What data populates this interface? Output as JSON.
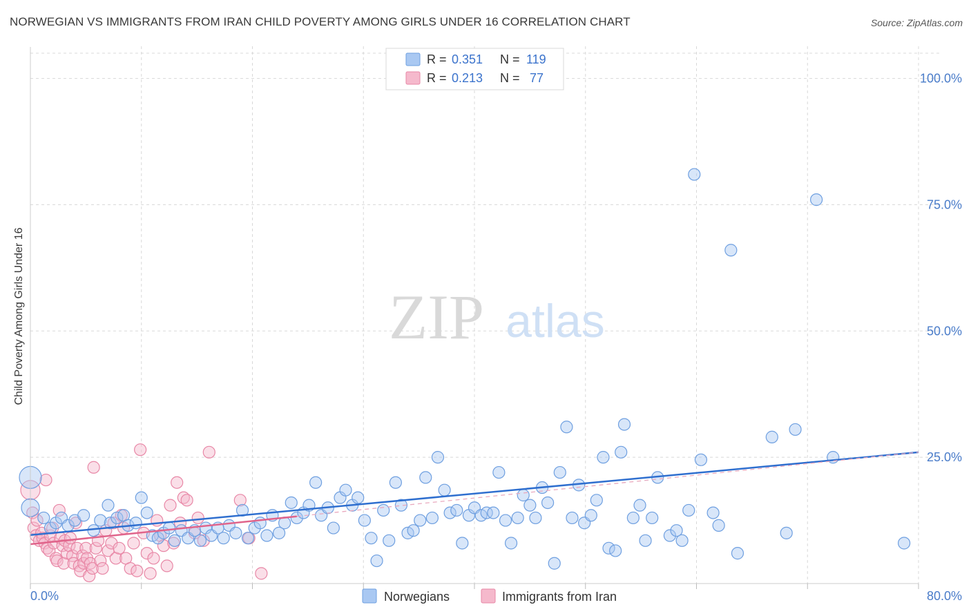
{
  "header": {
    "title": "NORWEGIAN VS IMMIGRANTS FROM IRAN CHILD POVERTY AMONG GIRLS UNDER 16 CORRELATION CHART",
    "source": "Source: ZipAtlas.com"
  },
  "watermark": {
    "zip": "ZIP",
    "atlas": "atlas"
  },
  "colors": {
    "blue_fill": "#a9c8f2",
    "blue_stroke": "#6e9fe0",
    "blue_line": "#2f6fcf",
    "pink_fill": "#f5b9cc",
    "pink_stroke": "#e887a6",
    "pink_line": "#e0648b",
    "tick_text": "#4a7cc9",
    "grid": "#d8d8d8"
  },
  "legend_stats": [
    {
      "r_label": "R = ",
      "r_value": "0.351",
      "n_label": "N = ",
      "n_value": "119",
      "color": "blue"
    },
    {
      "r_label": "R = ",
      "r_value": "0.213",
      "n_label": "N = ",
      "n_value": " 77",
      "color": "pink"
    }
  ],
  "chart_data": {
    "type": "scatter",
    "title": "NORWEGIAN VS IMMIGRANTS FROM IRAN CHILD POVERTY AMONG GIRLS UNDER 16 CORRELATION CHART",
    "xlabel": "",
    "ylabel": "Child Poverty Among Girls Under 16",
    "xlim": [
      0,
      80
    ],
    "ylim": [
      0,
      105
    ],
    "x_tick_labels": [
      "0.0%",
      "80.0%"
    ],
    "y_ticks": [
      25,
      50,
      75,
      100
    ],
    "y_tick_labels": [
      "25.0%",
      "50.0%",
      "75.0%",
      "100.0%"
    ],
    "grid": "dashed horizontal and vertical",
    "legend_position": "bottom-center",
    "series": [
      {
        "name": "Norwegians",
        "color": "blue",
        "trend": {
          "x": [
            0,
            80
          ],
          "y": [
            9.6,
            26.0
          ]
        },
        "points": [
          [
            0.0,
            21.0
          ],
          [
            0.0,
            15.0
          ],
          [
            1.2,
            13.0
          ],
          [
            1.8,
            11.0
          ],
          [
            2.3,
            12.0
          ],
          [
            2.8,
            13.0
          ],
          [
            3.4,
            11.5
          ],
          [
            4.0,
            12.5
          ],
          [
            4.8,
            13.5
          ],
          [
            5.7,
            10.5
          ],
          [
            6.3,
            12.5
          ],
          [
            7.0,
            15.5
          ],
          [
            7.2,
            12.0
          ],
          [
            7.8,
            13.0
          ],
          [
            8.4,
            13.5
          ],
          [
            8.8,
            11.5
          ],
          [
            9.5,
            12.0
          ],
          [
            10.0,
            17.0
          ],
          [
            10.5,
            14.0
          ],
          [
            11.0,
            9.5
          ],
          [
            11.5,
            9.0
          ],
          [
            12.0,
            10.0
          ],
          [
            12.5,
            11.0
          ],
          [
            13.0,
            8.5
          ],
          [
            13.6,
            10.5
          ],
          [
            14.2,
            9.0
          ],
          [
            14.8,
            10.5
          ],
          [
            15.3,
            8.5
          ],
          [
            15.8,
            11.0
          ],
          [
            16.3,
            9.5
          ],
          [
            16.9,
            11.0
          ],
          [
            17.4,
            9.0
          ],
          [
            17.9,
            11.5
          ],
          [
            18.5,
            10.0
          ],
          [
            19.1,
            14.5
          ],
          [
            19.6,
            9.0
          ],
          [
            20.2,
            11.0
          ],
          [
            20.7,
            12.0
          ],
          [
            21.3,
            9.5
          ],
          [
            21.8,
            13.5
          ],
          [
            22.4,
            10.0
          ],
          [
            22.9,
            12.0
          ],
          [
            23.5,
            16.0
          ],
          [
            24.0,
            13.0
          ],
          [
            24.6,
            14.0
          ],
          [
            25.1,
            15.5
          ],
          [
            25.7,
            20.0
          ],
          [
            26.2,
            13.5
          ],
          [
            26.8,
            15.0
          ],
          [
            27.3,
            11.0
          ],
          [
            27.9,
            17.0
          ],
          [
            28.4,
            18.5
          ],
          [
            29.0,
            15.5
          ],
          [
            29.5,
            17.0
          ],
          [
            30.1,
            12.5
          ],
          [
            30.7,
            9.0
          ],
          [
            31.2,
            4.5
          ],
          [
            31.8,
            14.5
          ],
          [
            32.3,
            8.5
          ],
          [
            32.9,
            20.0
          ],
          [
            33.4,
            15.5
          ],
          [
            34.0,
            10.0
          ],
          [
            34.5,
            10.5
          ],
          [
            35.1,
            12.5
          ],
          [
            35.6,
            21.0
          ],
          [
            36.2,
            13.0
          ],
          [
            36.7,
            25.0
          ],
          [
            37.3,
            18.5
          ],
          [
            37.8,
            14.0
          ],
          [
            38.4,
            14.5
          ],
          [
            38.9,
            8.0
          ],
          [
            39.5,
            13.5
          ],
          [
            40.0,
            15.0
          ],
          [
            40.6,
            13.5
          ],
          [
            41.1,
            14.0
          ],
          [
            41.7,
            14.0
          ],
          [
            42.2,
            22.0
          ],
          [
            42.8,
            12.5
          ],
          [
            43.3,
            8.0
          ],
          [
            43.9,
            13.0
          ],
          [
            44.4,
            17.5
          ],
          [
            45.0,
            15.5
          ],
          [
            45.5,
            13.0
          ],
          [
            46.1,
            19.0
          ],
          [
            46.6,
            16.0
          ],
          [
            47.2,
            4.0
          ],
          [
            47.7,
            22.0
          ],
          [
            48.3,
            31.0
          ],
          [
            48.8,
            13.0
          ],
          [
            49.4,
            19.5
          ],
          [
            49.9,
            12.0
          ],
          [
            50.5,
            13.5
          ],
          [
            51.0,
            16.5
          ],
          [
            51.6,
            25.0
          ],
          [
            52.1,
            7.0
          ],
          [
            52.7,
            6.5
          ],
          [
            53.2,
            26.0
          ],
          [
            53.5,
            31.5
          ],
          [
            54.3,
            13.0
          ],
          [
            54.9,
            15.5
          ],
          [
            55.4,
            8.5
          ],
          [
            56.0,
            13.0
          ],
          [
            56.5,
            21.0
          ],
          [
            57.6,
            9.5
          ],
          [
            58.2,
            10.5
          ],
          [
            58.7,
            8.5
          ],
          [
            59.3,
            14.5
          ],
          [
            59.8,
            81.0
          ],
          [
            60.4,
            24.5
          ],
          [
            61.5,
            14.0
          ],
          [
            62.0,
            11.5
          ],
          [
            63.1,
            66.0
          ],
          [
            63.7,
            6.0
          ],
          [
            66.8,
            29.0
          ],
          [
            68.1,
            10.0
          ],
          [
            68.9,
            30.5
          ],
          [
            70.8,
            76.0
          ],
          [
            72.3,
            25.0
          ],
          [
            78.7,
            8.0
          ]
        ]
      },
      {
        "name": "Immigrants from Iran",
        "color": "pink",
        "trend": {
          "x": [
            0,
            24
          ],
          "y": [
            7.8,
            13.3
          ]
        },
        "trend_dashed_extension": {
          "x": [
            24,
            80
          ],
          "y": [
            13.3,
            26.0
          ]
        },
        "points": [
          [
            0.0,
            18.5
          ],
          [
            0.2,
            14.0
          ],
          [
            0.3,
            11.0
          ],
          [
            0.5,
            9.5
          ],
          [
            0.6,
            12.5
          ],
          [
            0.8,
            8.5
          ],
          [
            1.0,
            10.0
          ],
          [
            1.1,
            9.0
          ],
          [
            1.3,
            8.0
          ],
          [
            1.4,
            20.5
          ],
          [
            1.5,
            7.0
          ],
          [
            1.7,
            6.5
          ],
          [
            1.8,
            9.5
          ],
          [
            2.0,
            11.0
          ],
          [
            2.1,
            8.0
          ],
          [
            2.3,
            5.0
          ],
          [
            2.4,
            4.5
          ],
          [
            2.6,
            14.5
          ],
          [
            2.7,
            9.0
          ],
          [
            2.9,
            7.5
          ],
          [
            3.0,
            4.0
          ],
          [
            3.1,
            8.5
          ],
          [
            3.3,
            6.0
          ],
          [
            3.5,
            7.5
          ],
          [
            3.6,
            9.0
          ],
          [
            3.8,
            5.5
          ],
          [
            3.9,
            4.0
          ],
          [
            4.1,
            12.0
          ],
          [
            4.2,
            7.0
          ],
          [
            4.4,
            3.5
          ],
          [
            4.5,
            2.5
          ],
          [
            4.7,
            5.5
          ],
          [
            4.8,
            4.0
          ],
          [
            5.0,
            7.0
          ],
          [
            5.1,
            5.0
          ],
          [
            5.3,
            1.5
          ],
          [
            5.4,
            4.0
          ],
          [
            5.6,
            3.0
          ],
          [
            5.7,
            23.0
          ],
          [
            5.9,
            7.0
          ],
          [
            6.1,
            8.5
          ],
          [
            6.3,
            4.5
          ],
          [
            6.5,
            3.0
          ],
          [
            6.8,
            10.5
          ],
          [
            7.0,
            6.5
          ],
          [
            7.3,
            8.0
          ],
          [
            7.5,
            12.0
          ],
          [
            7.7,
            5.0
          ],
          [
            8.0,
            7.0
          ],
          [
            8.2,
            13.5
          ],
          [
            8.4,
            11.0
          ],
          [
            8.6,
            5.0
          ],
          [
            9.0,
            3.0
          ],
          [
            9.3,
            8.0
          ],
          [
            9.6,
            2.5
          ],
          [
            9.9,
            26.5
          ],
          [
            10.2,
            10.0
          ],
          [
            10.5,
            6.0
          ],
          [
            10.8,
            2.0
          ],
          [
            11.1,
            5.0
          ],
          [
            11.4,
            12.5
          ],
          [
            11.7,
            9.5
          ],
          [
            12.0,
            7.5
          ],
          [
            12.3,
            3.5
          ],
          [
            12.6,
            15.5
          ],
          [
            12.9,
            8.0
          ],
          [
            13.2,
            20.0
          ],
          [
            13.5,
            12.0
          ],
          [
            13.8,
            17.0
          ],
          [
            14.1,
            16.5
          ],
          [
            14.8,
            10.0
          ],
          [
            15.1,
            13.0
          ],
          [
            15.6,
            8.5
          ],
          [
            16.1,
            26.0
          ],
          [
            18.9,
            16.5
          ],
          [
            19.7,
            9.0
          ],
          [
            20.8,
            2.0
          ]
        ]
      }
    ]
  }
}
